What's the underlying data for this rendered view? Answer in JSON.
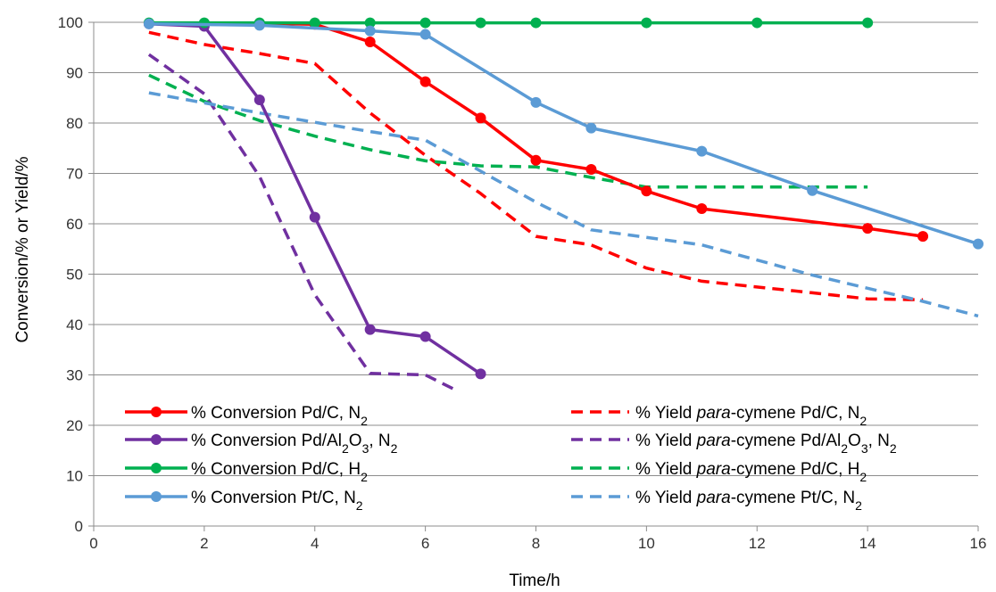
{
  "chart_data": {
    "type": "line",
    "xlabel": "Time/h",
    "ylabel": "Conversion/% or Yield/%",
    "xlim": [
      0,
      16
    ],
    "ylim": [
      0,
      100
    ],
    "xticks": [
      0,
      2,
      4,
      6,
      8,
      10,
      12,
      14,
      16
    ],
    "yticks": [
      0,
      10,
      20,
      30,
      40,
      50,
      60,
      70,
      80,
      90,
      100
    ],
    "grid": "horizontal",
    "legend_position": "bottom-inside, two columns",
    "series": [
      {
        "name": "% Conversion Pd/C, N2",
        "color": "#ff0000",
        "style": "solid-markers",
        "x": [
          1,
          2,
          3,
          4,
          5,
          6,
          7,
          8,
          9,
          10,
          11,
          14,
          15
        ],
        "y": [
          99.8,
          99.8,
          99.8,
          99.6,
          96.1,
          88.2,
          81.0,
          72.6,
          70.8,
          66.5,
          63.0,
          59.1,
          57.5
        ]
      },
      {
        "name": "% Conversion Pd/Al2O3, N2",
        "color": "#7030a0",
        "style": "solid-markers",
        "x": [
          1,
          2,
          3,
          4,
          5,
          6,
          7
        ],
        "y": [
          99.7,
          99.2,
          84.6,
          61.3,
          39.0,
          37.6,
          30.2
        ]
      },
      {
        "name": "% Conversion Pd/C, H2",
        "color": "#00b050",
        "style": "solid-markers",
        "x": [
          1,
          2,
          3,
          4,
          5,
          6,
          7,
          8,
          10,
          12,
          14
        ],
        "y": [
          99.9,
          99.9,
          99.9,
          99.9,
          99.9,
          99.9,
          99.9,
          99.9,
          99.9,
          99.9,
          99.9
        ]
      },
      {
        "name": "% Conversion Pt/C, N2",
        "color": "#5b9bd5",
        "style": "solid-markers",
        "x": [
          1,
          3,
          5,
          6,
          8,
          9,
          11,
          13,
          16
        ],
        "y": [
          99.7,
          99.4,
          98.3,
          97.6,
          84.1,
          79.0,
          74.4,
          66.6,
          56.0
        ]
      },
      {
        "name": "% Yield para-cymene Pd/C, N2",
        "color": "#ff0000",
        "style": "dashed",
        "x": [
          1,
          2,
          3,
          4,
          5,
          6,
          7,
          8,
          9,
          10,
          11,
          13,
          14,
          15
        ],
        "y": [
          98.0,
          95.6,
          93.8,
          91.8,
          82.0,
          73.6,
          66.0,
          57.5,
          55.8,
          51.2,
          48.6,
          46.3,
          45.1,
          44.9
        ]
      },
      {
        "name": "% Yield para-cymene Pd/Al2O3, N2",
        "color": "#7030a0",
        "style": "dashed",
        "x": [
          1,
          2,
          3,
          4,
          5,
          6,
          6.6
        ],
        "y": [
          93.6,
          85.8,
          69.4,
          45.9,
          30.3,
          30.0,
          26.7
        ]
      },
      {
        "name": "% Yield para-cymene Pd/C, H2",
        "color": "#00b050",
        "style": "dashed",
        "x": [
          1,
          2,
          3,
          4,
          5,
          6,
          7,
          8,
          9,
          10,
          11,
          12,
          13,
          14
        ],
        "y": [
          89.5,
          84.3,
          80.5,
          77.4,
          74.7,
          72.5,
          71.5,
          71.3,
          69.2,
          67.3,
          67.3,
          67.3,
          67.3,
          67.3
        ]
      },
      {
        "name": "% Yield para-cymene Pt/C, N2",
        "color": "#5b9bd5",
        "style": "dashed",
        "x": [
          1,
          3,
          5,
          6,
          8,
          9,
          11,
          13,
          15,
          16
        ],
        "y": [
          86.0,
          82.0,
          78.3,
          76.6,
          64.3,
          58.8,
          55.8,
          49.8,
          44.6,
          41.7
        ]
      }
    ]
  },
  "legend": {
    "conversion_prefix": "% Conversion",
    "yield_prefix": "% Yield ",
    "yield_italic": "para",
    "yield_suffix": "-cymene",
    "entries": [
      {
        "catalyst": "Pd/C, N",
        "catalyst_sub": "2",
        "catalyst_tail": "",
        "gas_sub": ""
      },
      {
        "catalyst": "Pd/Al",
        "catalyst_sub": "2",
        "catalyst_tail": "O",
        "catalyst_sub2": "3",
        "catalyst_tail2": ", N",
        "catalyst_sub3": "2"
      },
      {
        "catalyst": "Pd/C, H",
        "catalyst_sub": "2"
      },
      {
        "catalyst": "Pt/C, N",
        "catalyst_sub": "2"
      }
    ]
  }
}
